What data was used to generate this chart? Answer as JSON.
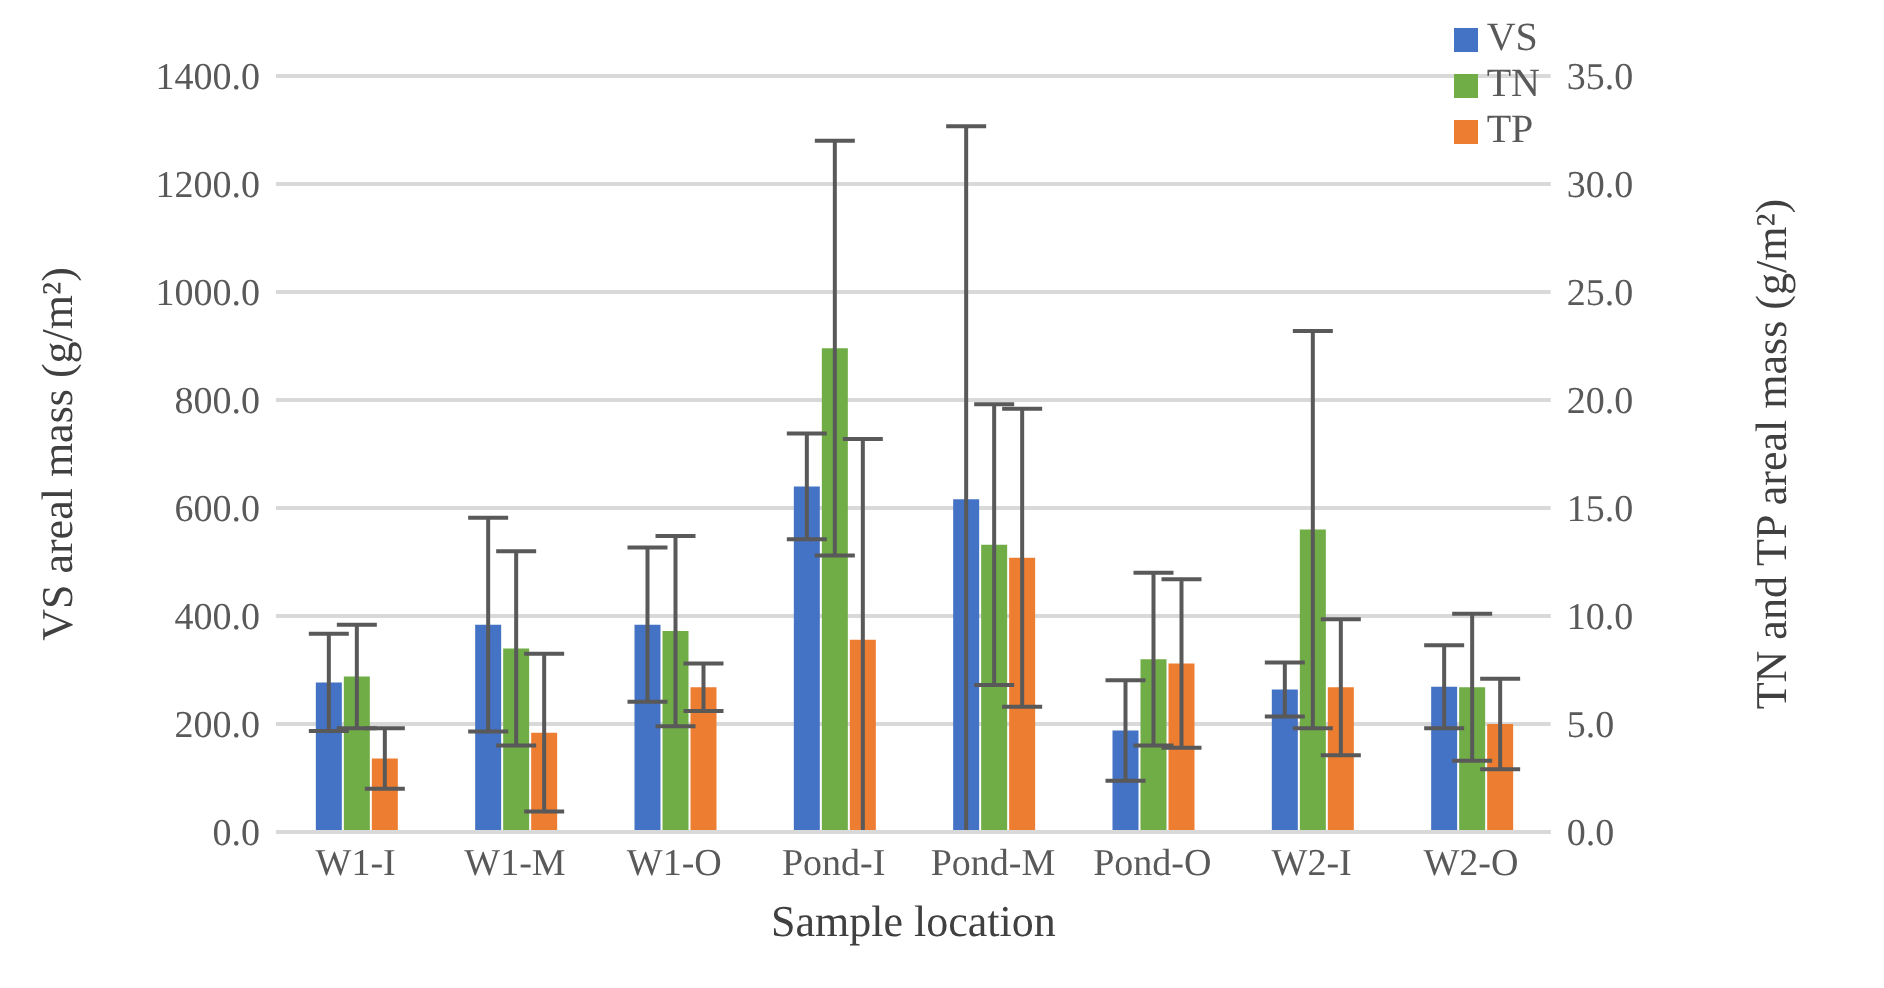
{
  "chart_data": {
    "type": "bar",
    "xlabel": "Sample location",
    "ylabel": "VS areal mass (g/m²)",
    "y2label": "TN and TP areal mass (g/m²)",
    "categories": [
      "W1-I",
      "W1-M",
      "W1-O",
      "Pond-I",
      "Pond-M",
      "Pond-O",
      "W2-I",
      "W2-O"
    ],
    "series": [
      {
        "name": "VS",
        "color": "#4472c4",
        "values": [
          277,
          384,
          384,
          640,
          616,
          188,
          264,
          269
        ],
        "errors": [
          90,
          198,
          143,
          98,
          [
            0,
            1307
          ],
          93,
          50,
          77
        ]
      },
      {
        "name": "TN",
        "color": "#70ad47",
        "axis": "y2",
        "values": [
          7.2,
          8.5,
          9.3,
          22.4,
          13.3,
          8.0,
          14.0,
          6.7
        ],
        "errors": [
          2.4,
          4.5,
          4.4,
          9.6,
          6.5,
          4.0,
          9.2,
          3.4
        ]
      },
      {
        "name": "TP",
        "color": "#ed7d31",
        "axis": "y2",
        "values": [
          3.4,
          4.6,
          6.7,
          8.9,
          12.7,
          7.8,
          6.7,
          5.0
        ],
        "errors": [
          1.4,
          3.65,
          1.1,
          [
            0,
            18.2
          ],
          6.9,
          3.9,
          3.15,
          2.1
        ]
      }
    ],
    "ylim": [
      0,
      1400
    ],
    "yticks": [
      {
        "value": 0,
        "label": "0.0"
      },
      {
        "value": 200,
        "label": "200.0"
      },
      {
        "value": 400,
        "label": "400.0"
      },
      {
        "value": 600,
        "label": "600.0"
      },
      {
        "value": 800,
        "label": "800.0"
      },
      {
        "value": 1000,
        "label": "1000.0"
      },
      {
        "value": 1200,
        "label": "1200.0"
      },
      {
        "value": 1400,
        "label": "1400.0"
      }
    ],
    "y2lim": [
      0,
      35
    ],
    "y2ticks": [
      {
        "value": 0,
        "label": "0.0"
      },
      {
        "value": 5,
        "label": "5.0"
      },
      {
        "value": 10,
        "label": "10.0"
      },
      {
        "value": 15,
        "label": "15.0"
      },
      {
        "value": 20,
        "label": "20.0"
      },
      {
        "value": 25,
        "label": "25.0"
      },
      {
        "value": 30,
        "label": "30.0"
      },
      {
        "value": 35,
        "label": "35.0"
      }
    ],
    "grid": "y",
    "legend": "top right"
  }
}
